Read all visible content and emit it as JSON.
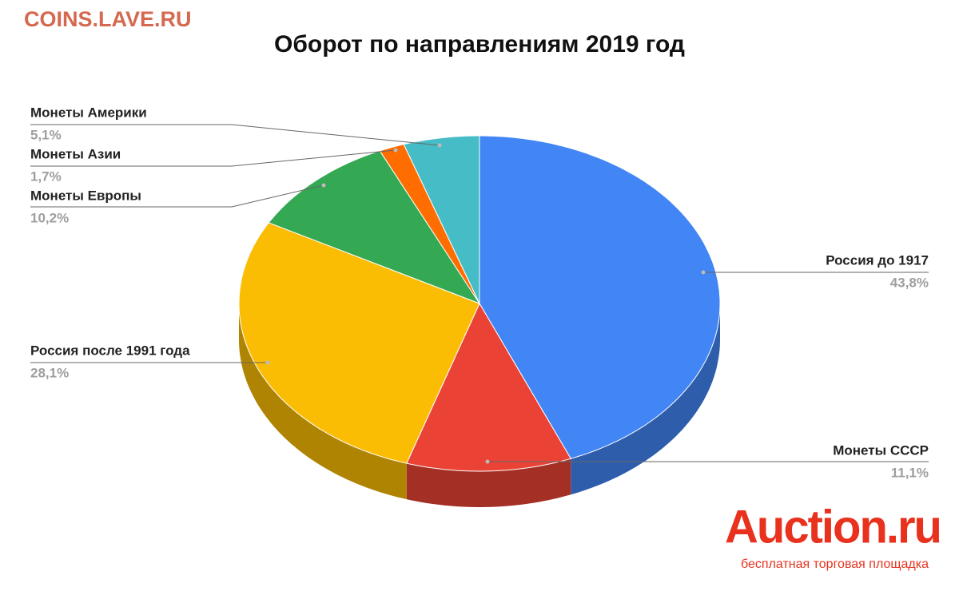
{
  "watermark": "COINS.LAVE.RU",
  "logo": {
    "name": "Auction.ru",
    "tagline": "бесплатная торговая площадка"
  },
  "chart_data": {
    "type": "pie",
    "title": "Оборот по направлениям 2019 год",
    "categories": [
      "Россия до 1917",
      "Монеты СССР",
      "Россия после 1991 года",
      "Монеты Европы",
      "Монеты Азии",
      "Монеты Америки"
    ],
    "values": [
      43.8,
      11.1,
      28.1,
      10.2,
      1.7,
      5.1
    ],
    "value_labels": [
      "43,8%",
      "11,1%",
      "28,1%",
      "10,2%",
      "1,7%",
      "5,1%"
    ],
    "colors": [
      "#4285f4",
      "#ea4335",
      "#fbbc04",
      "#34a853",
      "#ff6d01",
      "#46bdc6"
    ]
  }
}
